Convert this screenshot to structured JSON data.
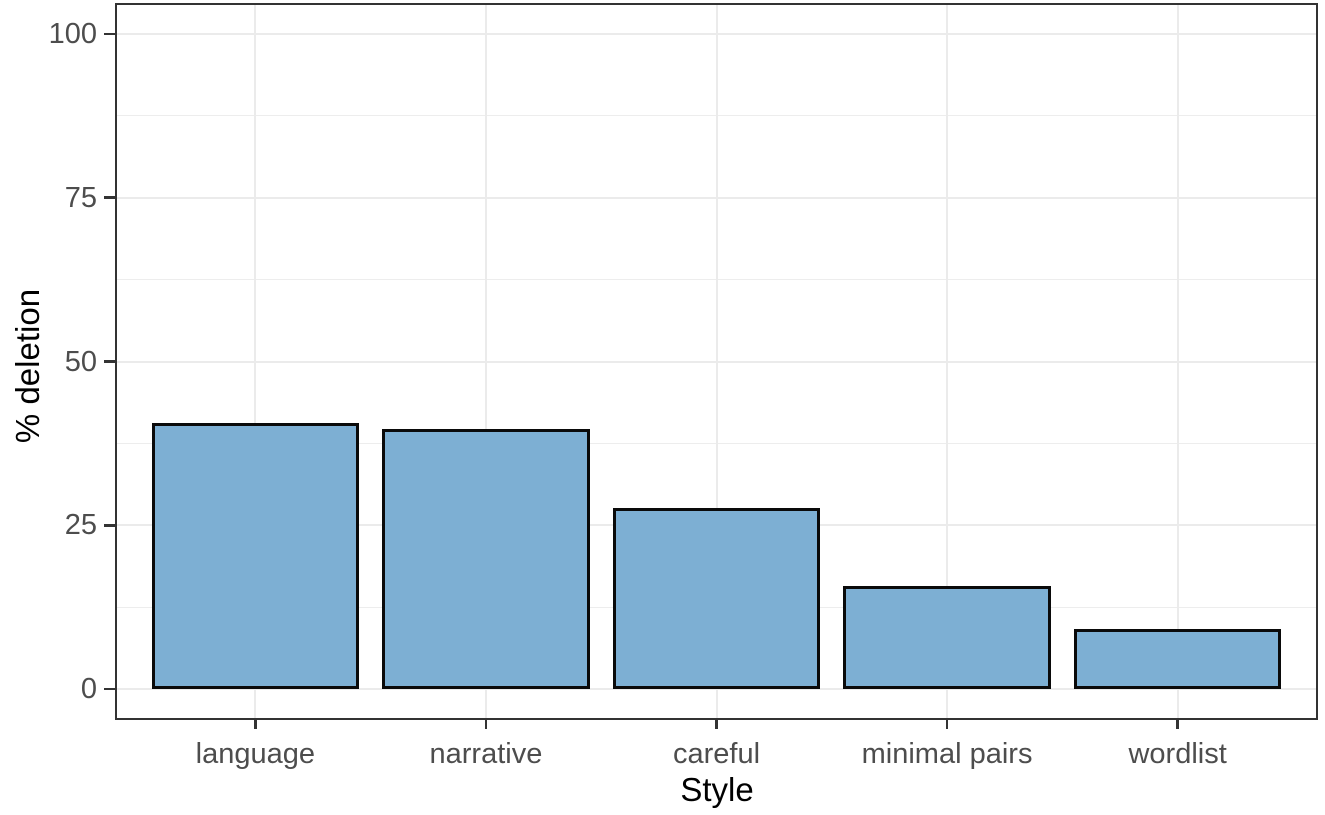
{
  "chart_data": {
    "type": "bar",
    "title": "",
    "xlabel": "Style",
    "ylabel": "% deletion",
    "categories": [
      "language",
      "narrative",
      "careful",
      "minimal pairs",
      "wordlist"
    ],
    "values": [
      40.6,
      39.7,
      27.7,
      15.8,
      9.2
    ],
    "y_ticks": [
      0,
      25,
      50,
      75,
      100
    ],
    "y_minor_ticks": [
      12.5,
      37.5,
      62.5,
      87.5
    ],
    "ylim": [
      0,
      100
    ],
    "grid": "horizontal major+minor, vertical major at category centers",
    "legend_position": "none",
    "colors": {
      "bar_fill": "#7DAFD3",
      "bar_border": "#0a0a0a",
      "grid_major": "#ebebeb",
      "grid_minor": "#ededed",
      "panel_border": "#333333",
      "tick_mark": "#333333",
      "axis_text": "#4d4d4d",
      "axis_title": "#000000"
    }
  }
}
